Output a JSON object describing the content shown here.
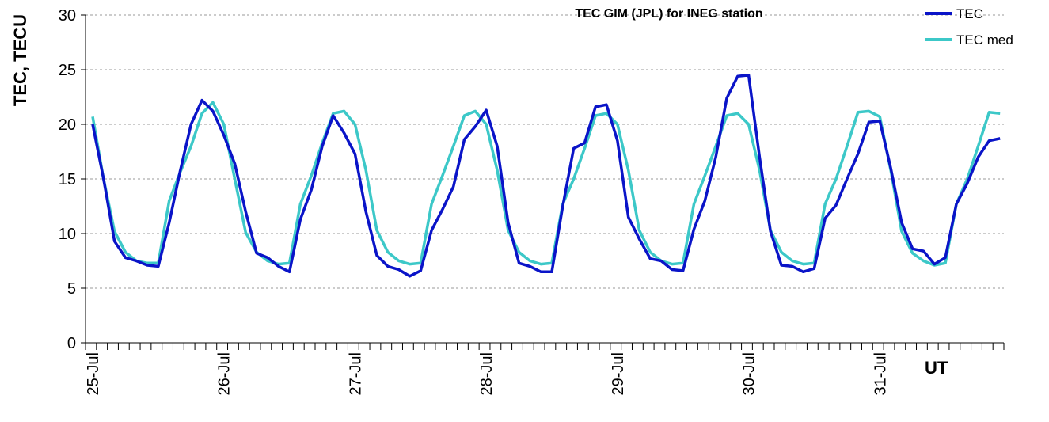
{
  "chart_data": {
    "type": "line",
    "title": "TEC GIM (JPL) for INEG station",
    "ylabel": "TEC, TECU",
    "xlabel": "UT",
    "ylim": [
      0,
      30
    ],
    "yticks": [
      0,
      5,
      10,
      15,
      20,
      25,
      30
    ],
    "x_tick_labels": [
      "25-Jul",
      "26-Jul",
      "27-Jul",
      "28-Jul",
      "29-Jul",
      "30-Jul",
      "31-Jul"
    ],
    "points_per_day": 12,
    "grid": "horizontal dashed",
    "legend_position": "top-right",
    "series": [
      {
        "name": "TEC",
        "color": "#0a14c8",
        "values": [
          20.0,
          15.0,
          9.3,
          7.8,
          7.5,
          7.1,
          7.0,
          11.0,
          15.7,
          20.0,
          22.2,
          21.2,
          19.0,
          16.4,
          12.0,
          8.2,
          7.8,
          7.0,
          6.5,
          11.3,
          14.0,
          18.0,
          20.8,
          19.2,
          17.3,
          12.0,
          8.0,
          7.0,
          6.7,
          6.1,
          6.6,
          10.3,
          12.2,
          14.3,
          18.6,
          19.8,
          21.3,
          18.0,
          11.0,
          7.3,
          7.0,
          6.5,
          6.5,
          12.5,
          17.8,
          18.3,
          21.6,
          21.8,
          18.5,
          11.5,
          9.5,
          7.7,
          7.5,
          6.7,
          6.6,
          10.4,
          13.0,
          17.0,
          22.4,
          24.4,
          24.5,
          17.0,
          10.2,
          7.1,
          7.0,
          6.5,
          6.8,
          11.4,
          12.6,
          15.0,
          17.3,
          20.2,
          20.3,
          16.0,
          11.0,
          8.6,
          8.4,
          7.2,
          7.8,
          12.7,
          14.6,
          17.0,
          18.5,
          18.7
        ]
      },
      {
        "name": "TEC med",
        "color": "#3cc8c8",
        "values": [
          20.7,
          15.0,
          10.2,
          8.3,
          7.5,
          7.3,
          7.3,
          13.0,
          15.6,
          18.0,
          21.0,
          22.0,
          20.0,
          15.0,
          10.1,
          8.3,
          7.5,
          7.2,
          7.3,
          12.7,
          15.3,
          18.3,
          21.0,
          21.2,
          20.0,
          15.8,
          10.3,
          8.3,
          7.5,
          7.2,
          7.3,
          12.7,
          15.3,
          18.0,
          20.8,
          21.2,
          20.0,
          15.8,
          10.3,
          8.3,
          7.5,
          7.2,
          7.3,
          12.7,
          15.0,
          17.8,
          20.8,
          21.0,
          20.0,
          15.8,
          10.3,
          8.3,
          7.5,
          7.2,
          7.3,
          12.7,
          15.3,
          18.0,
          20.8,
          21.0,
          20.0,
          15.8,
          10.3,
          8.3,
          7.5,
          7.2,
          7.3,
          12.7,
          15.0,
          18.0,
          21.1,
          21.2,
          20.7,
          15.8,
          10.2,
          8.2,
          7.5,
          7.1,
          7.3,
          12.7,
          15.0,
          18.0,
          21.1,
          21.0
        ]
      }
    ]
  }
}
